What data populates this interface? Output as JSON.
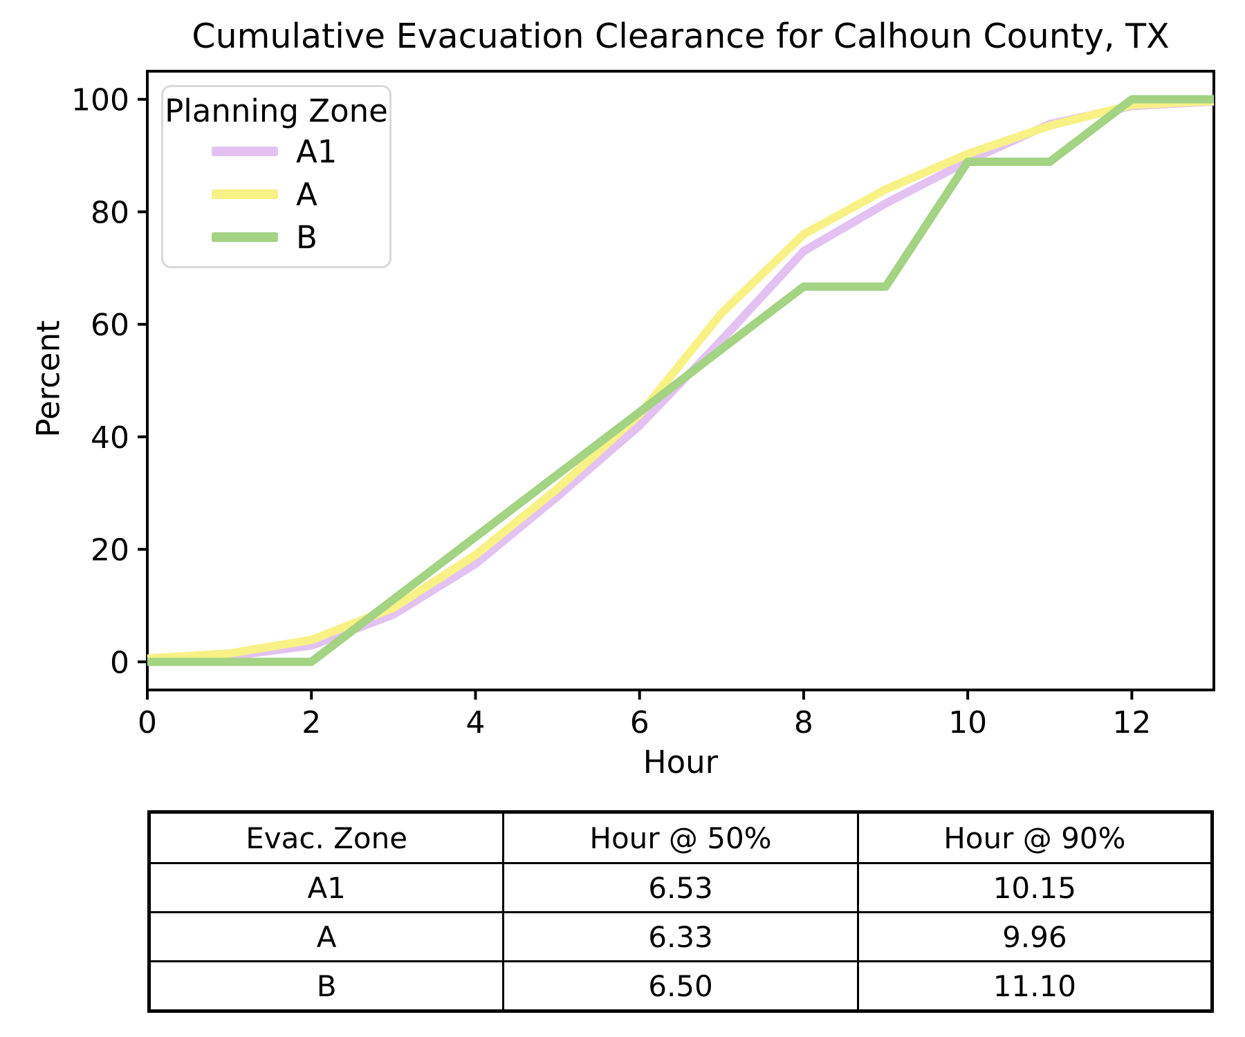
{
  "chart_data": {
    "type": "line",
    "title": "Cumulative Evacuation Clearance for Calhoun County, TX",
    "xlabel": "Hour",
    "ylabel": "Percent",
    "legend_title": "Planning Zone",
    "legend_position": "upper left",
    "grid": false,
    "x": [
      0,
      1,
      2,
      3,
      4,
      5,
      6,
      7,
      8,
      9,
      10,
      11,
      12,
      13
    ],
    "xlim": [
      0,
      13
    ],
    "ylim": [
      -5,
      105
    ],
    "xticks": [
      0,
      2,
      4,
      6,
      8,
      10,
      12
    ],
    "yticks": [
      0,
      20,
      40,
      60,
      80,
      100
    ],
    "series": [
      {
        "name": "A1",
        "color": "#e3c2f2",
        "values": [
          0.3,
          1.0,
          2.9,
          8.4,
          17.4,
          29.4,
          42.0,
          57.2,
          73.0,
          81.5,
          89.0,
          95.6,
          98.8,
          99.6
        ]
      },
      {
        "name": "A",
        "color": "#f8f186",
        "values": [
          0.6,
          1.5,
          3.9,
          9.6,
          19.0,
          30.8,
          44.0,
          62.0,
          76.0,
          84.0,
          90.3,
          95.3,
          99.0,
          99.7
        ]
      },
      {
        "name": "B",
        "color": "#a3d383",
        "values": [
          0.0,
          0.0,
          0.0,
          11.1,
          22.2,
          33.3,
          44.4,
          55.6,
          66.7,
          66.7,
          88.9,
          88.9,
          100.0,
          100.0
        ]
      }
    ]
  },
  "summary_table": {
    "headers": [
      "Evac. Zone",
      "Hour @ 50%",
      "Hour @ 90%"
    ],
    "rows": [
      {
        "zone": "A1",
        "h50": "6.53",
        "h90": "10.15"
      },
      {
        "zone": "A",
        "h50": "6.33",
        "h90": "9.96"
      },
      {
        "zone": "B",
        "h50": "6.50",
        "h90": "11.10"
      }
    ]
  }
}
